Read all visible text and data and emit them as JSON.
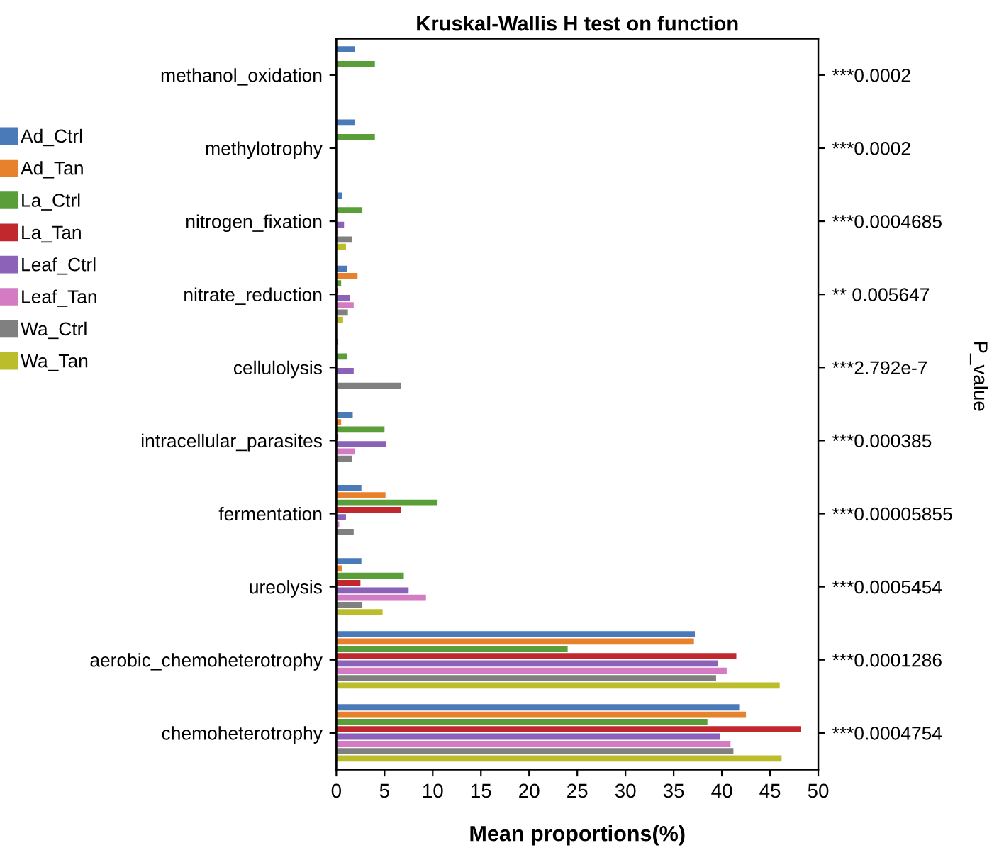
{
  "chart_data": {
    "type": "bar",
    "orientation": "horizontal",
    "title": "Kruskal-Wallis H test on function",
    "xlabel": "Mean proportions(%)",
    "annotations": [
      "P_value"
    ],
    "categories": [
      "methanol_oxidation",
      "methylotrophy",
      "nitrogen_fixation",
      "nitrate_reduction",
      "cellulolysis",
      "intracellular_parasites",
      "fermentation",
      "ureolysis",
      "aerobic_chemoheterotrophy",
      "chemoheterotrophy"
    ],
    "y2_categories": [
      "***0.0002",
      "***0.0002",
      "***0.0004685",
      "** 0.005647",
      "***2.792e-7",
      "***0.000385",
      "***0.00005855",
      "***0.0005454",
      "***0.0001286",
      "***0.0004754"
    ],
    "series": [
      {
        "name": "Ad_Ctrl",
        "color": "#4a7ab8",
        "values": [
          1.9,
          1.9,
          0.6,
          1.1,
          0.2,
          1.7,
          2.6,
          2.6,
          37.2,
          41.8
        ]
      },
      {
        "name": "Ad_Tan",
        "color": "#e8812b",
        "values": [
          0,
          0,
          0,
          2.2,
          0,
          0.5,
          5.1,
          0.6,
          37.1,
          42.5
        ]
      },
      {
        "name": "La_Ctrl",
        "color": "#5a9e3a",
        "values": [
          4.0,
          4.0,
          2.7,
          0.5,
          1.1,
          5.0,
          10.5,
          7.0,
          24.0,
          38.5
        ]
      },
      {
        "name": "La_Tan",
        "color": "#c0282e",
        "values": [
          0,
          0,
          0,
          0.2,
          0,
          0.2,
          6.7,
          2.5,
          41.5,
          48.2
        ]
      },
      {
        "name": "Leaf_Ctrl",
        "color": "#8c62b8",
        "values": [
          0,
          0,
          0.8,
          1.4,
          1.8,
          5.2,
          1.0,
          7.5,
          39.6,
          39.8
        ]
      },
      {
        "name": "Leaf_Tan",
        "color": "#d37cc3",
        "values": [
          0,
          0,
          0.2,
          1.8,
          0,
          1.9,
          0.3,
          9.3,
          40.5,
          40.9
        ]
      },
      {
        "name": "Wa_Ctrl",
        "color": "#808080",
        "values": [
          0,
          0,
          1.6,
          1.2,
          6.7,
          1.6,
          1.8,
          2.7,
          39.4,
          41.2
        ]
      },
      {
        "name": "Wa_Tan",
        "color": "#bcbd2b",
        "values": [
          0,
          0,
          1.0,
          0.7,
          0,
          0,
          0,
          4.8,
          46.0,
          46.2
        ]
      }
    ],
    "xlim": [
      0,
      50
    ],
    "xticks": [
      0,
      5,
      10,
      15,
      20,
      25,
      30,
      35,
      40,
      45,
      50
    ],
    "grid": false,
    "legend": "left"
  }
}
